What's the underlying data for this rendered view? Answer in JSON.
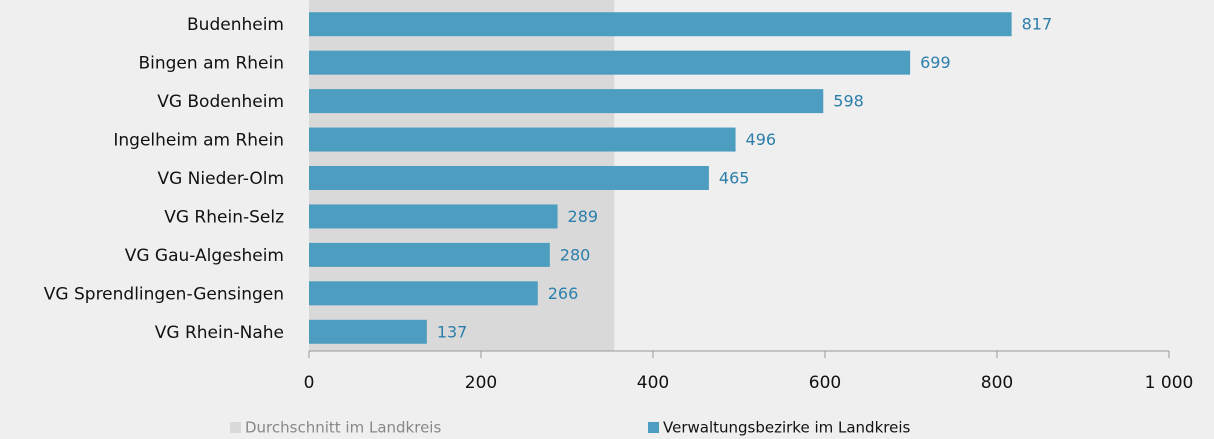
{
  "chart_data": {
    "type": "bar",
    "orientation": "horizontal",
    "categories": [
      "Budenheim",
      "Bingen am Rhein",
      "VG Bodenheim",
      "Ingelheim am Rhein",
      "VG Nieder-Olm",
      "VG Rhein-Selz",
      "VG Gau-Algesheim",
      "VG Sprendlingen-Gensingen",
      "VG Rhein-Nahe"
    ],
    "series": [
      {
        "name": "Verwaltungsbezirke im Landkreis",
        "color": "#4d9dc1",
        "values": [
          817,
          699,
          598,
          496,
          465,
          289,
          280,
          266,
          137
        ]
      }
    ],
    "average": {
      "name": "Durchschnitt im Landkreis",
      "color": "#d9d9d9",
      "value": 355
    },
    "xlim": [
      0,
      1000
    ],
    "xticks": [
      0,
      200,
      400,
      600,
      800,
      {
        "value": 1000,
        "label": "1 000"
      }
    ]
  }
}
